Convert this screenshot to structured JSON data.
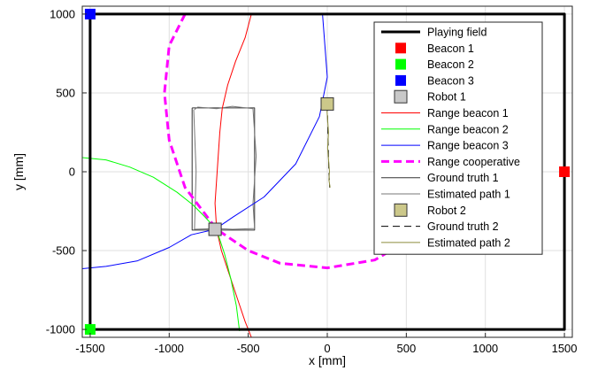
{
  "chart_data": {
    "type": "line",
    "title": "",
    "xlabel": "x [mm]",
    "ylabel": "y [mm]",
    "xlim": [
      -1550,
      1550
    ],
    "ylim": [
      -1050,
      1050
    ],
    "xticks": [
      -1500,
      -1000,
      -500,
      0,
      500,
      1000,
      1500
    ],
    "yticks": [
      -1000,
      -500,
      0,
      500,
      1000
    ],
    "xtick_labels": [
      "-1500",
      "-1000",
      "-500",
      "0",
      "500",
      "1000",
      "1500"
    ],
    "ytick_labels": [
      "-1000",
      "-500",
      "0",
      "500",
      "1000"
    ],
    "grid": true,
    "legend_position": "top-right",
    "series": [
      {
        "name": "Playing field",
        "kind": "line",
        "color": "#000000",
        "width": 3,
        "x": [
          -1500,
          1500,
          1500,
          -1500,
          -1500
        ],
        "y": [
          1000,
          1000,
          -1000,
          -1000,
          1000
        ]
      },
      {
        "name": "Beacon 1",
        "kind": "marker",
        "color": "#ff0000",
        "x": [
          1500
        ],
        "y": [
          0
        ]
      },
      {
        "name": "Beacon 2",
        "kind": "marker",
        "color": "#00ff00",
        "x": [
          -1500
        ],
        "y": [
          -1000
        ]
      },
      {
        "name": "Beacon 3",
        "kind": "marker",
        "color": "#0000ff",
        "x": [
          -1500
        ],
        "y": [
          1000
        ]
      },
      {
        "name": "Robot 1",
        "kind": "marker",
        "color": "#c8c8c8",
        "x": [
          -710
        ],
        "y": [
          -365
        ]
      },
      {
        "name": "Range beacon 1",
        "kind": "line",
        "color": "#ff0000",
        "width": 1,
        "x": [
          -480,
          -520,
          -580,
          -630,
          -665,
          -680,
          -690,
          -700,
          -710,
          -700,
          -670,
          -620,
          -570,
          -520,
          -480
        ],
        "y": [
          1000,
          850,
          700,
          550,
          400,
          250,
          100,
          -50,
          -200,
          -365,
          -500,
          -650,
          -800,
          -950,
          -1050
        ]
      },
      {
        "name": "Range beacon 2",
        "kind": "line",
        "color": "#00ff00",
        "width": 1,
        "x": [
          -1550,
          -1400,
          -1250,
          -1100,
          -950,
          -850,
          -780,
          -720,
          -690,
          -650,
          -610,
          -575,
          -555
        ],
        "y": [
          90,
          75,
          30,
          -35,
          -130,
          -210,
          -280,
          -345,
          -400,
          -520,
          -680,
          -850,
          -1010
        ]
      },
      {
        "name": "Range beacon 3",
        "kind": "line",
        "color": "#0000ff",
        "width": 1,
        "x": [
          -1550,
          -1500,
          -1400,
          -1200,
          -1000,
          -860,
          -710,
          -600,
          -400,
          -200,
          -50,
          0,
          -30
        ],
        "y": [
          -615,
          -610,
          -600,
          -565,
          -480,
          -400,
          -365,
          -290,
          -160,
          50,
          350,
          600,
          1000
        ]
      },
      {
        "name": "Range cooperative",
        "kind": "dashed",
        "color": "#ff00ff",
        "width": 3,
        "x": [
          -900,
          -1000,
          -1030,
          -1000,
          -900,
          -700,
          -500,
          -300,
          0,
          300,
          520
        ],
        "y": [
          1000,
          800,
          500,
          200,
          -100,
          -365,
          -500,
          -580,
          -610,
          -560,
          -430
        ]
      },
      {
        "name": "Ground truth 1",
        "kind": "line",
        "color": "#333333",
        "width": 1,
        "x": [
          -855,
          -460,
          -460,
          -855,
          -855
        ],
        "y": [
          405,
          405,
          -370,
          -370,
          405
        ]
      },
      {
        "name": "Estimated path 1",
        "kind": "line",
        "color": "#777777",
        "width": 1,
        "x": [
          -840,
          -820,
          -700,
          -600,
          -470,
          -450,
          -470,
          -460,
          -600,
          -700,
          -840,
          -830,
          -845
        ],
        "y": [
          395,
          410,
          400,
          415,
          400,
          100,
          -200,
          -360,
          -365,
          -360,
          -365,
          0,
          395
        ]
      },
      {
        "name": "Robot 2",
        "kind": "marker",
        "color": "#ccc88a",
        "x": [
          0
        ],
        "y": [
          430
        ]
      },
      {
        "name": "Ground truth 2",
        "kind": "dashed",
        "color": "#000000",
        "width": 1,
        "x": [
          0,
          5,
          10,
          15
        ],
        "y": [
          430,
          200,
          0,
          -100
        ]
      },
      {
        "name": "Estimated path 2",
        "kind": "line",
        "color": "#8c8c3c",
        "width": 1,
        "x": [
          -5,
          8,
          2,
          14,
          10,
          18
        ],
        "y": [
          430,
          250,
          150,
          0,
          -50,
          -100
        ]
      }
    ]
  }
}
